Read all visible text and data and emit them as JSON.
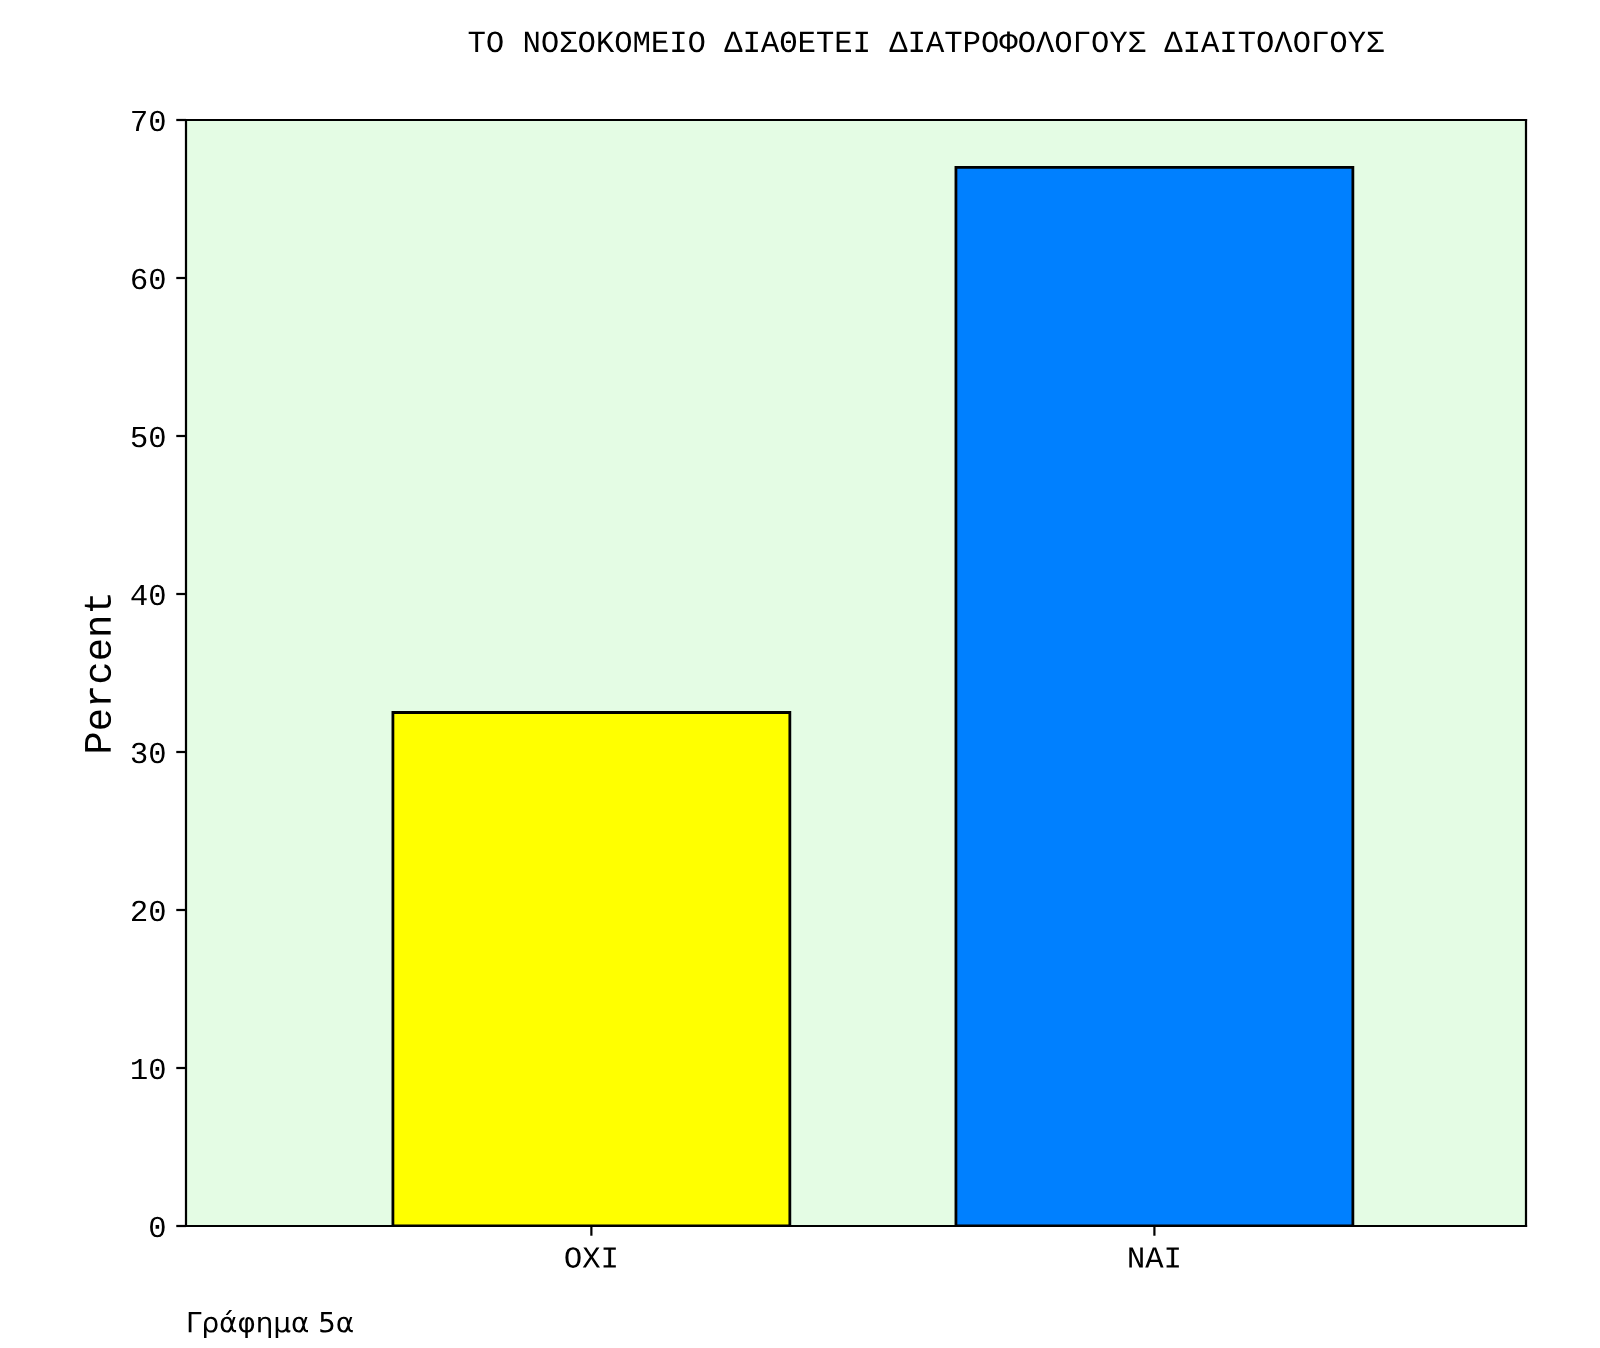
{
  "chart_data": {
    "type": "bar",
    "title": "ΤΟ ΝΟΣΟΚΟΜΕΙΟ ΔΙΑΘΕΤΕΙ ΔΙΑΤΡΟΦΟΛΟΓΟΥΣ ΔΙΑΙΤΟΛΟΓΟΥΣ",
    "ylabel": "Percent",
    "categories": [
      "ΟΧΙ",
      "ΝΑΙ"
    ],
    "values": [
      32.5,
      67
    ],
    "colors": [
      "#ffff00",
      "#0080ff"
    ],
    "ylim": [
      0,
      70
    ],
    "yticks": [
      0,
      10,
      20,
      30,
      40,
      50,
      60,
      70
    ],
    "grid": false,
    "legend": false,
    "annotations": [
      "Γράφημα 5α"
    ]
  }
}
